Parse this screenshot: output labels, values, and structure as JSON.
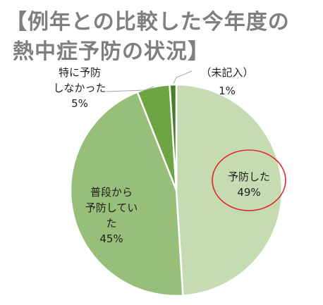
{
  "title_lines": [
    "【例年との比較した今年度の",
    "熱中症予防の状況】"
  ],
  "chart_data": {
    "type": "pie",
    "title": "【例年との比較した今年度の熱中症予防の状況】",
    "slices": [
      {
        "label": "予防した",
        "value": 49,
        "value_label": "49%",
        "color": "#c5dcb3"
      },
      {
        "label": "普段から予防していた",
        "value": 45,
        "value_label": "45%",
        "color": "#98bf7a"
      },
      {
        "label": "特に予防しなかった",
        "value": 5,
        "value_label": "5%",
        "color": "#6ea544"
      },
      {
        "label": "（未記入）",
        "value": 1,
        "value_label": "1%",
        "color": "#4c7d2c"
      }
    ],
    "legend": "none",
    "highlight": {
      "slice": "予防した",
      "shape": "ellipse",
      "color": "#e32626"
    }
  }
}
